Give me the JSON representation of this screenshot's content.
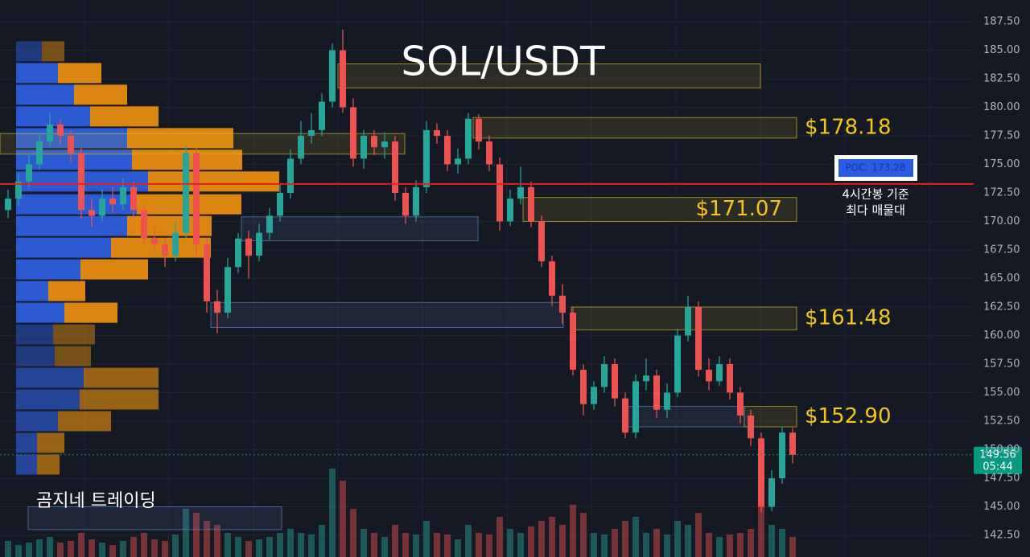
{
  "chart_data": {
    "type": "candlestick",
    "title": "SOL/USDT",
    "watermark": "곰지네 트레이딩",
    "open": [
      171.0,
      172.0,
      173.5,
      175.0,
      177.0,
      178.5,
      177.5,
      176.0,
      171.0,
      170.5,
      172.0,
      171.5,
      173.0,
      171.0,
      168.5,
      168.0,
      167.0,
      169.0,
      176.0,
      168.0,
      163.0,
      162.0,
      166.0,
      168.5,
      167.0,
      169.0,
      170.5,
      172.5,
      175.5,
      177.5,
      178.0,
      180.5,
      185.0,
      180.0,
      175.5,
      177.5,
      176.5,
      177.0,
      172.5,
      170.5,
      173.0,
      178.0,
      177.5,
      175.0,
      175.5,
      179.0,
      177.0,
      175.0,
      170.0,
      172.0,
      173.0,
      170.0,
      166.5,
      163.5,
      162.0,
      157.0,
      154.0,
      155.5,
      157.5,
      154.5,
      151.5,
      156.0,
      156.5,
      153.5,
      155.0,
      160.0,
      162.5,
      157.0,
      156.0,
      157.5,
      155.0,
      153.0,
      151.0,
      145.0,
      147.5,
      151.5
    ],
    "high": [
      172.8,
      174.2,
      175.8,
      177.6,
      179.5,
      179.0,
      178.0,
      176.5,
      172.0,
      172.8,
      173.0,
      173.8,
      173.5,
      171.5,
      169.5,
      168.6,
      170.0,
      176.6,
      176.5,
      168.5,
      164.0,
      166.8,
      169.0,
      169.2,
      169.8,
      171.2,
      173.2,
      176.3,
      178.8,
      179.5,
      181.2,
      185.6,
      186.8,
      180.8,
      178.0,
      178.0,
      177.8,
      177.5,
      173.0,
      173.6,
      178.8,
      178.6,
      178.0,
      176.4,
      179.5,
      179.4,
      177.5,
      175.6,
      172.8,
      174.8,
      173.5,
      170.5,
      167.0,
      164.5,
      162.5,
      157.5,
      156.0,
      158.2,
      158.0,
      155.0,
      156.6,
      158.0,
      157.0,
      155.8,
      160.6,
      163.5,
      163.0,
      158.0,
      158.2,
      158.0,
      155.5,
      153.5,
      151.5,
      148.2,
      152.0,
      151.9
    ],
    "low": [
      170.3,
      171.4,
      173.0,
      174.5,
      176.6,
      176.8,
      175.2,
      170.2,
      169.5,
      170.0,
      170.8,
      171.0,
      170.2,
      168.0,
      167.2,
      166.0,
      166.5,
      168.5,
      167.0,
      162.0,
      160.2,
      161.5,
      165.5,
      165.0,
      166.5,
      168.4,
      170.0,
      172.0,
      175.0,
      176.8,
      177.5,
      180.0,
      179.5,
      174.8,
      174.6,
      175.8,
      175.5,
      171.8,
      169.8,
      170.0,
      172.5,
      176.8,
      174.4,
      174.2,
      175.0,
      176.3,
      174.4,
      169.2,
      169.6,
      171.5,
      169.5,
      166.0,
      162.6,
      161.0,
      156.5,
      153.0,
      153.5,
      155.0,
      153.8,
      151.0,
      151.0,
      155.2,
      152.8,
      152.8,
      154.6,
      159.5,
      156.4,
      155.2,
      155.6,
      154.4,
      152.3,
      150.3,
      144.5,
      144.6,
      147.0,
      148.8
    ],
    "close": [
      172.0,
      173.5,
      175.0,
      177.0,
      178.5,
      177.5,
      176.0,
      171.0,
      170.5,
      172.0,
      171.5,
      173.0,
      171.0,
      168.5,
      168.0,
      167.0,
      169.0,
      176.0,
      168.0,
      163.0,
      162.0,
      166.0,
      168.5,
      167.0,
      169.0,
      170.5,
      172.5,
      175.5,
      177.5,
      178.0,
      180.5,
      185.0,
      180.0,
      175.5,
      177.5,
      176.5,
      177.0,
      172.5,
      170.5,
      173.0,
      178.0,
      177.5,
      175.0,
      175.5,
      179.0,
      177.0,
      175.0,
      170.0,
      172.0,
      173.0,
      170.0,
      166.5,
      163.5,
      162.0,
      157.0,
      154.0,
      155.5,
      157.5,
      154.5,
      151.5,
      156.0,
      156.5,
      153.5,
      155.0,
      160.0,
      162.5,
      157.0,
      156.0,
      157.5,
      155.0,
      153.0,
      151.0,
      145.0,
      147.5,
      151.5,
      149.56
    ],
    "volume": [
      20,
      15,
      18,
      22,
      25,
      18,
      20,
      30,
      22,
      18,
      15,
      20,
      25,
      30,
      22,
      20,
      28,
      60,
      55,
      45,
      40,
      30,
      25,
      20,
      22,
      25,
      30,
      35,
      30,
      28,
      40,
      110,
      95,
      60,
      35,
      30,
      25,
      40,
      30,
      28,
      45,
      30,
      28,
      22,
      40,
      30,
      28,
      50,
      35,
      30,
      38,
      45,
      50,
      40,
      65,
      55,
      30,
      28,
      35,
      45,
      50,
      30,
      35,
      28,
      45,
      40,
      55,
      30,
      25,
      28,
      30,
      35,
      70,
      40,
      35,
      25
    ],
    "up_color": "#26a69a",
    "down_color": "#ef5350",
    "ylim": [
      140.6,
      189.4
    ],
    "yticks": [
      {
        "value": 142.5,
        "label": "142.50"
      },
      {
        "value": 145,
        "label": "145.00"
      },
      {
        "value": 147.5,
        "label": "147.50"
      },
      {
        "value": 150,
        "label": "150.00"
      },
      {
        "value": 152.5,
        "label": "152.50"
      },
      {
        "value": 155,
        "label": "155.00"
      },
      {
        "value": 157.5,
        "label": "157.50"
      },
      {
        "value": 160,
        "label": "160.00"
      },
      {
        "value": 162.5,
        "label": "162.50"
      },
      {
        "value": 165,
        "label": "165.00"
      },
      {
        "value": 167.5,
        "label": "167.50"
      },
      {
        "value": 170,
        "label": "170.00"
      },
      {
        "value": 172.5,
        "label": "172.50"
      },
      {
        "value": 175,
        "label": "175.00"
      },
      {
        "value": 177.5,
        "label": "177.50"
      },
      {
        "value": 180,
        "label": "180.00"
      },
      {
        "value": 182.5,
        "label": "182.50"
      },
      {
        "value": 185,
        "label": "185.00"
      },
      {
        "value": 187.5,
        "label": "187.50"
      }
    ],
    "grid": true,
    "poc": {
      "value": 173.28,
      "label": "POC: 173.28",
      "note": [
        "4시간봉 기준",
        "최다 매물대"
      ],
      "color": "#e01f1f"
    },
    "current": {
      "value": 149.56,
      "time": "05:44",
      "color": "#089981"
    },
    "zones": [
      {
        "low": 181.7,
        "high": 183.8,
        "color": "#d4b62a"
      },
      {
        "low": 175.9,
        "high": 177.7,
        "color": "#d4b62a"
      },
      {
        "low": 177.3,
        "high": 179.1,
        "color": "#d4b62a",
        "label": "$178.18"
      },
      {
        "low": 170.0,
        "high": 172.1,
        "color": "#d4b62a",
        "label": "$171.07"
      },
      {
        "low": 160.5,
        "high": 162.5,
        "color": "#d4b62a",
        "label": "$161.48"
      },
      {
        "low": 152.0,
        "high": 153.8,
        "color": "#d4b62a",
        "label": "$152.90"
      },
      {
        "low": 168.3,
        "high": 170.4,
        "color": "#5a86c8"
      },
      {
        "low": 160.7,
        "high": 162.9,
        "color": "#5a86c8"
      },
      {
        "low": 152.0,
        "high": 153.8,
        "color": "#5a86c8"
      },
      {
        "low": 143.0,
        "high": 145.0,
        "color": "#5a86c8"
      }
    ],
    "volume_profile": {
      "prices": [
        184.9,
        183.0,
        181.1,
        179.2,
        177.3,
        175.4,
        173.5,
        171.5,
        169.6,
        167.7,
        165.8,
        163.9,
        162.0,
        160.1,
        158.2,
        156.3,
        154.4,
        152.5,
        150.6,
        148.7
      ],
      "buy": [
        32,
        52,
        72,
        92,
        138,
        144,
        164,
        150,
        138,
        118,
        80,
        40,
        60,
        46,
        48,
        84,
        79,
        52,
        26,
        26
      ],
      "sell": [
        28,
        54,
        66,
        85,
        132,
        137,
        163,
        130,
        105,
        124,
        84,
        46,
        66,
        52,
        45,
        93,
        98,
        66,
        34,
        28
      ],
      "buy_color": "#2e62e6",
      "sell_color": "#f0920e"
    }
  }
}
